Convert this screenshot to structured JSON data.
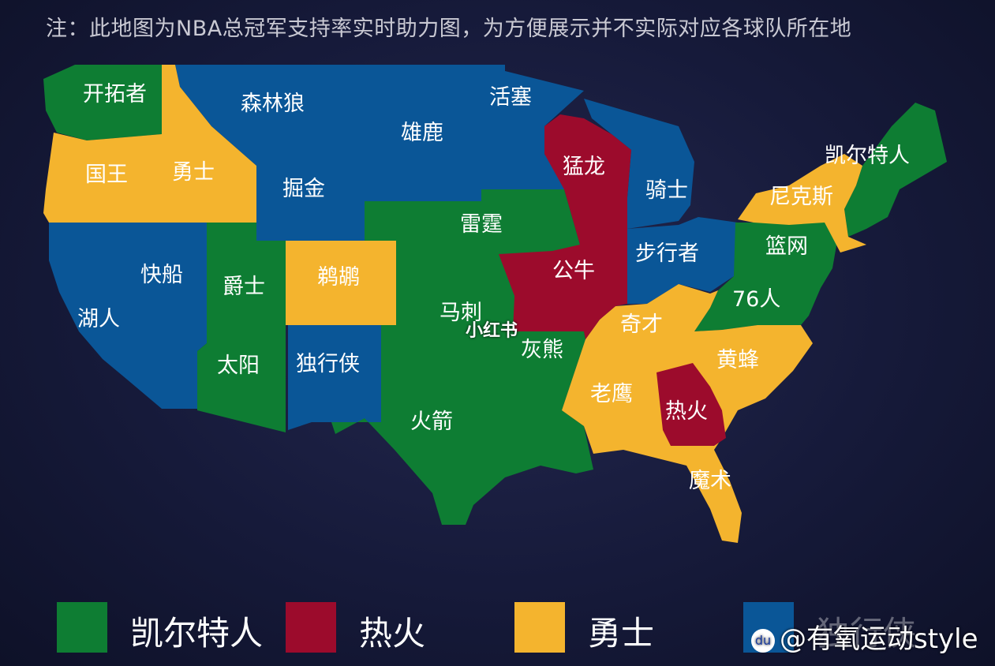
{
  "note": "注：此地图为NBA总冠军支持率实时助力图，为方便展示并不实际对应各球队所在地",
  "colors": {
    "green": "#0e7d33",
    "red": "#9c0b2c",
    "yellow": "#f4b42e",
    "blue": "#0a5697"
  },
  "teams": {
    "kaituozhe": "开拓者",
    "senlinlang": "森林狼",
    "huosai": "活塞",
    "xionglu": "雄鹿",
    "menglong": "猛龙",
    "kaierteren": "凯尔特人",
    "guowang": "国王",
    "yongshi": "勇士",
    "juejin": "掘金",
    "qishi": "骑士",
    "nikesi": "尼克斯",
    "leiting": "雷霆",
    "gongniu": "公牛",
    "buxingzhe": "步行者",
    "lanwang": "篮网",
    "kuaichuan": "快船",
    "jueshi": "爵士",
    "tihu": "鹈鹕",
    "76ren": "76人",
    "huren": "湖人",
    "maci": "马刺",
    "qicai": "奇才",
    "huixiong": "灰熊",
    "huangfeng": "黄蜂",
    "taiyang": "太阳",
    "duxingxia": "独行侠",
    "laoying": "老鹰",
    "rehuo": "热火",
    "huojian": "火箭",
    "moshu": "魔术"
  },
  "legend": [
    {
      "label": "凯尔特人",
      "color": "#0e7d33"
    },
    {
      "label": "热火",
      "color": "#9c0b2c"
    },
    {
      "label": "勇士",
      "color": "#f4b42e"
    },
    {
      "label": "独行侠",
      "color": "#0a5697"
    }
  ],
  "watermark_center": "小红书",
  "watermark_corner": "@有氧运动style"
}
